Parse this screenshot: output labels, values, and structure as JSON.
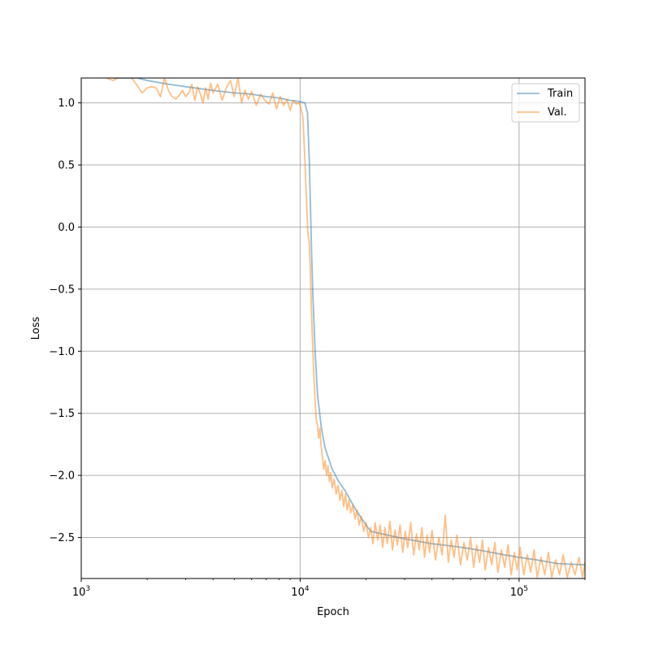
{
  "chart_data": {
    "type": "line",
    "title": "",
    "xlabel": "Epoch",
    "ylabel": "Loss",
    "x_scale": "log",
    "xlim": [
      1000,
      200000
    ],
    "ylim": [
      -2.83,
      1.2
    ],
    "grid": true,
    "legend_position": "top-right",
    "x_ticks": [
      {
        "value": 1000,
        "label_base": "10",
        "label_exp": "3"
      },
      {
        "value": 10000,
        "label_base": "10",
        "label_exp": "4"
      },
      {
        "value": 100000,
        "label_base": "10",
        "label_exp": "5"
      }
    ],
    "y_ticks": [
      {
        "value": 1.0,
        "label": "1.0"
      },
      {
        "value": 0.5,
        "label": "0.5"
      },
      {
        "value": 0.0,
        "label": "0.0"
      },
      {
        "value": -0.5,
        "label": "−0.5"
      },
      {
        "value": -1.0,
        "label": "−1.0"
      },
      {
        "value": -1.5,
        "label": "−1.5"
      },
      {
        "value": -2.0,
        "label": "−2.0"
      },
      {
        "value": -2.5,
        "label": "−2.5"
      }
    ],
    "series": [
      {
        "name": "Train",
        "color": "#1f77b4",
        "opacity": 0.5,
        "points": [
          [
            1400,
            1.2
          ],
          [
            1500,
            1.2
          ],
          [
            1800,
            1.2
          ],
          [
            2000,
            1.18
          ],
          [
            2500,
            1.15
          ],
          [
            3000,
            1.13
          ],
          [
            4000,
            1.1
          ],
          [
            5000,
            1.08
          ],
          [
            6000,
            1.07
          ],
          [
            7000,
            1.05
          ],
          [
            8000,
            1.04
          ],
          [
            9000,
            1.02
          ],
          [
            10000,
            1.01
          ],
          [
            10500,
            1.0
          ],
          [
            10800,
            0.92
          ],
          [
            11000,
            0.55
          ],
          [
            11200,
            0.0
          ],
          [
            11400,
            -0.5
          ],
          [
            11700,
            -1.0
          ],
          [
            12000,
            -1.35
          ],
          [
            12500,
            -1.62
          ],
          [
            13000,
            -1.78
          ],
          [
            14000,
            -1.95
          ],
          [
            15000,
            -2.05
          ],
          [
            16000,
            -2.12
          ],
          [
            18000,
            -2.28
          ],
          [
            20000,
            -2.4
          ],
          [
            21000,
            -2.45
          ],
          [
            25000,
            -2.48
          ],
          [
            30000,
            -2.51
          ],
          [
            40000,
            -2.55
          ],
          [
            50000,
            -2.57
          ],
          [
            60000,
            -2.59
          ],
          [
            70000,
            -2.61
          ],
          [
            80000,
            -2.63
          ],
          [
            100000,
            -2.66
          ],
          [
            120000,
            -2.68
          ],
          [
            150000,
            -2.71
          ],
          [
            200000,
            -2.72
          ]
        ]
      },
      {
        "name": "Val.",
        "color": "#ff7f0e",
        "opacity": 0.5,
        "points": [
          [
            1300,
            1.2
          ],
          [
            1400,
            1.18
          ],
          [
            1500,
            1.21
          ],
          [
            1600,
            1.22
          ],
          [
            1700,
            1.2
          ],
          [
            1800,
            1.14
          ],
          [
            1900,
            1.08
          ],
          [
            2000,
            1.12
          ],
          [
            2100,
            1.13
          ],
          [
            2200,
            1.12
          ],
          [
            2300,
            1.05
          ],
          [
            2400,
            1.2
          ],
          [
            2500,
            1.1
          ],
          [
            2600,
            1.05
          ],
          [
            2700,
            1.03
          ],
          [
            2800,
            1.06
          ],
          [
            2900,
            1.1
          ],
          [
            3000,
            1.05
          ],
          [
            3100,
            1.08
          ],
          [
            3200,
            1.15
          ],
          [
            3300,
            1.02
          ],
          [
            3400,
            1.13
          ],
          [
            3500,
            1.07
          ],
          [
            3600,
            1.0
          ],
          [
            3700,
            1.12
          ],
          [
            3800,
            1.03
          ],
          [
            3900,
            1.16
          ],
          [
            4000,
            1.08
          ],
          [
            4200,
            1.15
          ],
          [
            4400,
            1.02
          ],
          [
            4600,
            1.12
          ],
          [
            4800,
            1.18
          ],
          [
            5000,
            1.05
          ],
          [
            5200,
            1.2
          ],
          [
            5400,
            1.0
          ],
          [
            5600,
            1.1
          ],
          [
            5800,
            1.03
          ],
          [
            6000,
            1.09
          ],
          [
            6300,
            0.98
          ],
          [
            6600,
            1.07
          ],
          [
            6900,
            1.02
          ],
          [
            7200,
            0.99
          ],
          [
            7500,
            1.08
          ],
          [
            7800,
            0.95
          ],
          [
            8100,
            1.05
          ],
          [
            8400,
            0.98
          ],
          [
            8700,
            1.03
          ],
          [
            9000,
            0.94
          ],
          [
            9300,
            1.02
          ],
          [
            9600,
            0.99
          ],
          [
            9900,
            1.0
          ],
          [
            10100,
            0.95
          ],
          [
            10300,
            0.88
          ],
          [
            10500,
            0.55
          ],
          [
            10700,
            0.2
          ],
          [
            10850,
            -0.05
          ],
          [
            11000,
            -0.12
          ],
          [
            11100,
            -0.3
          ],
          [
            11250,
            -0.65
          ],
          [
            11400,
            -0.95
          ],
          [
            11550,
            -1.2
          ],
          [
            11700,
            -1.4
          ],
          [
            11850,
            -1.55
          ],
          [
            12000,
            -1.6
          ],
          [
            12150,
            -1.7
          ],
          [
            12300,
            -1.62
          ],
          [
            12450,
            -1.75
          ],
          [
            12600,
            -1.83
          ],
          [
            12800,
            -1.95
          ],
          [
            13000,
            -1.88
          ],
          [
            13200,
            -2.0
          ],
          [
            13400,
            -1.92
          ],
          [
            13600,
            -2.05
          ],
          [
            13800,
            -1.98
          ],
          [
            14000,
            -2.1
          ],
          [
            14300,
            -2.03
          ],
          [
            14600,
            -2.15
          ],
          [
            14900,
            -2.08
          ],
          [
            15200,
            -2.2
          ],
          [
            15500,
            -2.12
          ],
          [
            15800,
            -2.25
          ],
          [
            16100,
            -2.15
          ],
          [
            16400,
            -2.28
          ],
          [
            16700,
            -2.2
          ],
          [
            17000,
            -2.3
          ],
          [
            17400,
            -2.24
          ],
          [
            17800,
            -2.35
          ],
          [
            18200,
            -2.28
          ],
          [
            18600,
            -2.4
          ],
          [
            19000,
            -2.33
          ],
          [
            19500,
            -2.45
          ],
          [
            20000,
            -2.38
          ],
          [
            20500,
            -2.5
          ],
          [
            21000,
            -2.42
          ],
          [
            21500,
            -2.55
          ],
          [
            22000,
            -2.38
          ],
          [
            22600,
            -2.52
          ],
          [
            23200,
            -2.4
          ],
          [
            23800,
            -2.58
          ],
          [
            24400,
            -2.42
          ],
          [
            25000,
            -2.55
          ],
          [
            25700,
            -2.37
          ],
          [
            26400,
            -2.6
          ],
          [
            27100,
            -2.44
          ],
          [
            27800,
            -2.56
          ],
          [
            28600,
            -2.4
          ],
          [
            29400,
            -2.62
          ],
          [
            30200,
            -2.45
          ],
          [
            31000,
            -2.58
          ],
          [
            32000,
            -2.38
          ],
          [
            33000,
            -2.64
          ],
          [
            34000,
            -2.47
          ],
          [
            35000,
            -2.6
          ],
          [
            36000,
            -2.42
          ],
          [
            37000,
            -2.66
          ],
          [
            38000,
            -2.48
          ],
          [
            39000,
            -2.62
          ],
          [
            40000,
            -2.44
          ],
          [
            41500,
            -2.68
          ],
          [
            43000,
            -2.5
          ],
          [
            44500,
            -2.64
          ],
          [
            46000,
            -2.32
          ],
          [
            47500,
            -2.7
          ],
          [
            49000,
            -2.52
          ],
          [
            50500,
            -2.66
          ],
          [
            52000,
            -2.48
          ],
          [
            54000,
            -2.72
          ],
          [
            56000,
            -2.54
          ],
          [
            58000,
            -2.68
          ],
          [
            60000,
            -2.5
          ],
          [
            62000,
            -2.74
          ],
          [
            64000,
            -2.56
          ],
          [
            66000,
            -2.7
          ],
          [
            68000,
            -2.52
          ],
          [
            70000,
            -2.76
          ],
          [
            72500,
            -2.58
          ],
          [
            75000,
            -2.72
          ],
          [
            77500,
            -2.54
          ],
          [
            80000,
            -2.78
          ],
          [
            83000,
            -2.6
          ],
          [
            86000,
            -2.74
          ],
          [
            89000,
            -2.56
          ],
          [
            92000,
            -2.8
          ],
          [
            95000,
            -2.62
          ],
          [
            98000,
            -2.76
          ],
          [
            101000,
            -2.58
          ],
          [
            105000,
            -2.8
          ],
          [
            109000,
            -2.64
          ],
          [
            113000,
            -2.78
          ],
          [
            117000,
            -2.6
          ],
          [
            121000,
            -2.82
          ],
          [
            126000,
            -2.66
          ],
          [
            131000,
            -2.8
          ],
          [
            136000,
            -2.62
          ],
          [
            141000,
            -2.82
          ],
          [
            147000,
            -2.68
          ],
          [
            153000,
            -2.8
          ],
          [
            159000,
            -2.64
          ],
          [
            166000,
            -2.82
          ],
          [
            173000,
            -2.7
          ],
          [
            180000,
            -2.8
          ],
          [
            188000,
            -2.66
          ],
          [
            195000,
            -2.82
          ],
          [
            200000,
            -2.7
          ]
        ]
      }
    ]
  }
}
